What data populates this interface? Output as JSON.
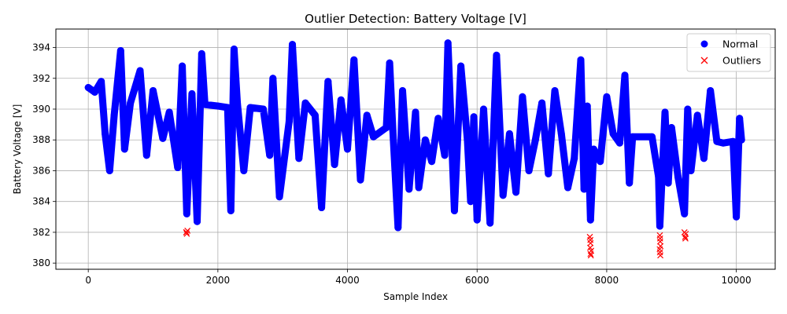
{
  "chart_data": {
    "type": "scatter",
    "title": "Outlier Detection: Battery Voltage [V]",
    "xlabel": "Sample Index",
    "ylabel": "Battery Voltage [V]",
    "xlim": [
      -500,
      10600
    ],
    "ylim": [
      379.6,
      395.2
    ],
    "xticks": [
      0,
      2000,
      4000,
      6000,
      8000,
      10000
    ],
    "yticks": [
      380,
      382,
      384,
      386,
      388,
      390,
      392,
      394
    ],
    "grid": true,
    "legend": "top-right",
    "colors": {
      "normal": "#0000ff",
      "outliers": "#ff0000"
    },
    "series": [
      {
        "name": "Normal",
        "marker": "circle",
        "color": "#0000ff",
        "segments": [
          [
            0,
            391.4
          ],
          [
            100,
            391.1
          ],
          [
            200,
            391.8
          ],
          [
            260,
            388.4
          ],
          [
            330,
            386.0
          ],
          [
            400,
            389.6
          ],
          [
            500,
            393.8
          ],
          [
            560,
            387.4
          ],
          [
            650,
            390.4
          ],
          [
            800,
            392.5
          ],
          [
            900,
            387.0
          ],
          [
            1000,
            391.2
          ],
          [
            1150,
            388.1
          ],
          [
            1250,
            389.8
          ],
          [
            1380,
            386.2
          ],
          [
            1450,
            392.8
          ],
          [
            1520,
            383.2
          ],
          [
            1600,
            391.0
          ],
          [
            1680,
            382.7
          ],
          [
            1750,
            393.6
          ],
          [
            1800,
            390.3
          ],
          [
            2000,
            390.2
          ],
          [
            2150,
            390.1
          ],
          [
            2200,
            383.4
          ],
          [
            2250,
            393.9
          ],
          [
            2300,
            390.4
          ],
          [
            2400,
            386.0
          ],
          [
            2500,
            390.1
          ],
          [
            2700,
            390.0
          ],
          [
            2800,
            387.0
          ],
          [
            2850,
            392.0
          ],
          [
            2950,
            384.3
          ],
          [
            3100,
            389.2
          ],
          [
            3150,
            394.2
          ],
          [
            3250,
            386.8
          ],
          [
            3350,
            390.4
          ],
          [
            3500,
            389.6
          ],
          [
            3600,
            383.6
          ],
          [
            3700,
            391.8
          ],
          [
            3800,
            386.4
          ],
          [
            3900,
            390.6
          ],
          [
            4000,
            387.4
          ],
          [
            4100,
            393.2
          ],
          [
            4200,
            385.4
          ],
          [
            4300,
            389.6
          ],
          [
            4400,
            388.2
          ],
          [
            4600,
            388.8
          ],
          [
            4650,
            393.0
          ],
          [
            4700,
            388.6
          ],
          [
            4780,
            382.3
          ],
          [
            4850,
            391.2
          ],
          [
            4950,
            384.8
          ],
          [
            5050,
            389.8
          ],
          [
            5100,
            384.9
          ],
          [
            5200,
            388.0
          ],
          [
            5300,
            386.6
          ],
          [
            5400,
            389.4
          ],
          [
            5500,
            387.0
          ],
          [
            5550,
            394.3
          ],
          [
            5650,
            383.4
          ],
          [
            5750,
            392.8
          ],
          [
            5850,
            388.0
          ],
          [
            5900,
            384.0
          ],
          [
            5950,
            389.5
          ],
          [
            6000,
            382.8
          ],
          [
            6100,
            390.0
          ],
          [
            6200,
            382.6
          ],
          [
            6300,
            393.5
          ],
          [
            6400,
            384.4
          ],
          [
            6500,
            388.4
          ],
          [
            6600,
            384.6
          ],
          [
            6700,
            390.8
          ],
          [
            6800,
            386.0
          ],
          [
            6900,
            388.0
          ],
          [
            7000,
            390.4
          ],
          [
            7100,
            385.8
          ],
          [
            7200,
            391.2
          ],
          [
            7300,
            388.4
          ],
          [
            7400,
            384.9
          ],
          [
            7500,
            386.8
          ],
          [
            7600,
            393.2
          ],
          [
            7650,
            384.8
          ],
          [
            7700,
            390.2
          ],
          [
            7750,
            382.8
          ],
          [
            7800,
            387.4
          ],
          [
            7900,
            386.6
          ],
          [
            8000,
            390.8
          ],
          [
            8100,
            388.4
          ],
          [
            8200,
            387.8
          ],
          [
            8280,
            392.2
          ],
          [
            8350,
            385.2
          ],
          [
            8400,
            388.2
          ],
          [
            8700,
            388.2
          ],
          [
            8800,
            385.6
          ],
          [
            8820,
            382.4
          ],
          [
            8900,
            389.8
          ],
          [
            8950,
            385.2
          ],
          [
            9000,
            388.8
          ],
          [
            9100,
            385.6
          ],
          [
            9200,
            383.2
          ],
          [
            9250,
            390.0
          ],
          [
            9300,
            386.0
          ],
          [
            9400,
            389.6
          ],
          [
            9500,
            386.8
          ],
          [
            9600,
            391.2
          ],
          [
            9700,
            387.9
          ],
          [
            9800,
            387.8
          ],
          [
            9950,
            387.9
          ],
          [
            10000,
            383.0
          ],
          [
            10050,
            389.4
          ],
          [
            10080,
            388.0
          ]
        ]
      },
      {
        "name": "Outliers",
        "marker": "x",
        "color": "#ff0000",
        "points": [
          [
            1510,
            382.0
          ],
          [
            1520,
            381.9
          ],
          [
            1530,
            382.1
          ],
          [
            1515,
            382.0
          ],
          [
            7740,
            381.7
          ],
          [
            7750,
            381.3
          ],
          [
            7745,
            381.0
          ],
          [
            7760,
            380.8
          ],
          [
            7750,
            380.6
          ],
          [
            7755,
            380.5
          ],
          [
            7748,
            381.5
          ],
          [
            8820,
            381.8
          ],
          [
            8825,
            381.4
          ],
          [
            8830,
            381.1
          ],
          [
            8818,
            380.9
          ],
          [
            8822,
            380.7
          ],
          [
            8828,
            380.5
          ],
          [
            8824,
            381.6
          ],
          [
            9200,
            382.0
          ],
          [
            9210,
            381.7
          ],
          [
            9220,
            381.9
          ],
          [
            9215,
            381.6
          ]
        ]
      }
    ]
  }
}
